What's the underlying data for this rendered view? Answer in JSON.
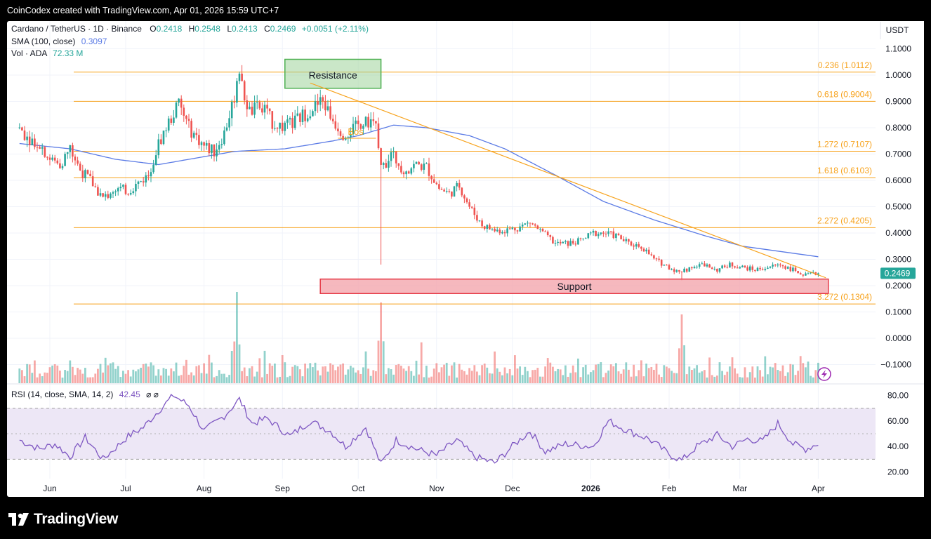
{
  "header": {
    "caption": "CoinCodex created with TradingView.com, Apr 01, 2026 15:59 UTC+7"
  },
  "legend": {
    "symbol": "Cardano / TetherUS · 1D · Binance",
    "o_label": "O",
    "o_value": "0.2418",
    "h_label": "H",
    "h_value": "0.2548",
    "l_label": "L",
    "l_value": "0.2413",
    "c_label": "C",
    "c_value": "0.2469",
    "change": "+0.0051 (+2.11%)",
    "sma_label": "SMA (100, close)",
    "sma_value": "0.3097",
    "vol_label": "Vol · ADA",
    "vol_value": "72.33 M"
  },
  "price_axis": {
    "currency": "USDT",
    "ticks": [
      "1.1000",
      "1.0000",
      "0.9000",
      "0.8000",
      "0.7000",
      "0.6000",
      "0.5000",
      "0.4000",
      "0.3000",
      "0.2000",
      "0.1000",
      "0.0000",
      "−0.1000"
    ],
    "current_price": "0.2469"
  },
  "time_axis": {
    "labels": [
      "Jun",
      "Jul",
      "Aug",
      "Sep",
      "Oct",
      "Nov",
      "Dec",
      "2026",
      "Feb",
      "Mar",
      "Apr"
    ]
  },
  "rsi": {
    "label": "RSI (14, close, SMA, 14, 2)",
    "value": "42.45",
    "extra": "⌀ ⌀",
    "ticks": [
      "80.00",
      "60.00",
      "40.00",
      "20.00"
    ],
    "upper_band": 70,
    "middle": 50,
    "lower_band": 30
  },
  "annotations": {
    "resistance": "Resistance",
    "support": "Support",
    "bos": "Bos"
  },
  "chart_data": {
    "type": "candlestick",
    "title": "Cardano / TetherUS · 1D · Binance",
    "ylim": [
      -0.1,
      1.1
    ],
    "fibonacci_levels": [
      {
        "label": "0.236 (1.0112)",
        "value": 1.0112
      },
      {
        "label": "0.618 (0.9004)",
        "value": 0.9004
      },
      {
        "label": "1.272 (0.7107)",
        "value": 0.7107
      },
      {
        "label": "1.618 (0.6103)",
        "value": 0.6103
      },
      {
        "label": "2.272 (0.4205)",
        "value": 0.4205
      },
      {
        "label": "3.272 (0.1304)",
        "value": 0.1304
      }
    ],
    "price_path": [
      [
        "May 20",
        0.8
      ],
      [
        "May 24",
        0.76
      ],
      [
        "May 28",
        0.74
      ],
      [
        "Jun 01",
        0.68
      ],
      [
        "Jun 05",
        0.66
      ],
      [
        "Jun 09",
        0.72
      ],
      [
        "Jun 13",
        0.64
      ],
      [
        "Jun 17",
        0.6
      ],
      [
        "Jun 22",
        0.53
      ],
      [
        "Jun 27",
        0.57
      ],
      [
        "Jul 02",
        0.56
      ],
      [
        "Jul 06",
        0.59
      ],
      [
        "Jul 10",
        0.62
      ],
      [
        "Jul 14",
        0.74
      ],
      [
        "Jul 18",
        0.82
      ],
      [
        "Jul 22",
        0.89
      ],
      [
        "Jul 26",
        0.8
      ],
      [
        "Aug 01",
        0.73
      ],
      [
        "Aug 05",
        0.71
      ],
      [
        "Aug 09",
        0.78
      ],
      [
        "Aug 13",
        0.92
      ],
      [
        "Aug 15",
        0.98
      ],
      [
        "Aug 19",
        0.86
      ],
      [
        "Aug 24",
        0.88
      ],
      [
        "Aug 28",
        0.82
      ],
      [
        "Sep 02",
        0.8
      ],
      [
        "Sep 07",
        0.83
      ],
      [
        "Sep 12",
        0.87
      ],
      [
        "Sep 17",
        0.9
      ],
      [
        "Sep 21",
        0.83
      ],
      [
        "Sep 25",
        0.78
      ],
      [
        "Sep 30",
        0.8
      ],
      [
        "Oct 04",
        0.84
      ],
      [
        "Oct 08",
        0.8
      ],
      [
        "Oct 10",
        0.64
      ],
      [
        "Oct 14",
        0.7
      ],
      [
        "Oct 19",
        0.64
      ],
      [
        "Oct 24",
        0.66
      ],
      [
        "Oct 28",
        0.65
      ],
      [
        "Nov 02",
        0.57
      ],
      [
        "Nov 06",
        0.55
      ],
      [
        "Nov 10",
        0.58
      ],
      [
        "Nov 14",
        0.5
      ],
      [
        "Nov 19",
        0.43
      ],
      [
        "Nov 24",
        0.41
      ],
      [
        "Nov 28",
        0.41
      ],
      [
        "Dec 03",
        0.42
      ],
      [
        "Dec 08",
        0.44
      ],
      [
        "Dec 13",
        0.4
      ],
      [
        "Dec 18",
        0.36
      ],
      [
        "Dec 23",
        0.36
      ],
      [
        "Dec 28",
        0.37
      ],
      [
        "Jan 02",
        0.4
      ],
      [
        "Jan 06",
        0.4
      ],
      [
        "Jan 11",
        0.39
      ],
      [
        "Jan 16",
        0.36
      ],
      [
        "Jan 21",
        0.35
      ],
      [
        "Jan 26",
        0.3
      ],
      [
        "Feb 01",
        0.27
      ],
      [
        "Feb 05",
        0.25
      ],
      [
        "Feb 10",
        0.27
      ],
      [
        "Feb 15",
        0.28
      ],
      [
        "Feb 20",
        0.26
      ],
      [
        "Feb 25",
        0.28
      ],
      [
        "Mar 02",
        0.27
      ],
      [
        "Mar 07",
        0.26
      ],
      [
        "Mar 12",
        0.27
      ],
      [
        "Mar 17",
        0.28
      ],
      [
        "Mar 22",
        0.26
      ],
      [
        "Mar 27",
        0.24
      ],
      [
        "Apr 01",
        0.2469
      ]
    ],
    "spikes": [
      {
        "date": "Oct 10",
        "low": 0.28
      },
      {
        "date": "Feb 06",
        "low": 0.22
      }
    ],
    "sma_100": [
      [
        "May 20",
        0.74
      ],
      [
        "Jun 09",
        0.72
      ],
      [
        "Jun 27",
        0.68
      ],
      [
        "Jul 14",
        0.66
      ],
      [
        "Jul 26",
        0.68
      ],
      [
        "Aug 13",
        0.71
      ],
      [
        "Sep 02",
        0.72
      ],
      [
        "Sep 21",
        0.75
      ],
      [
        "Oct 01",
        0.77
      ],
      [
        "Oct 15",
        0.81
      ],
      [
        "Oct 28",
        0.8
      ],
      [
        "Nov 14",
        0.77
      ],
      [
        "Nov 28",
        0.72
      ],
      [
        "Dec 18",
        0.62
      ],
      [
        "Jan 06",
        0.52
      ],
      [
        "Jan 26",
        0.45
      ],
      [
        "Feb 15",
        0.39
      ],
      [
        "Mar 02",
        0.35
      ],
      [
        "Mar 17",
        0.33
      ],
      [
        "Apr 01",
        0.31
      ]
    ],
    "trendline": [
      [
        "Sep 12",
        0.97
      ],
      [
        "Apr 04",
        0.23
      ]
    ],
    "resistance_zone": {
      "from": "Sep 02",
      "to": "Oct 10",
      "low": 0.95,
      "high": 1.06
    },
    "support_zone": {
      "from": "Sep 16",
      "to": "Apr 05",
      "low": 0.17,
      "high": 0.225
    },
    "bos_level": {
      "from": "Sep 23",
      "to": "Oct 08",
      "value": 0.76
    },
    "volume_spikes": [
      {
        "date": "Aug 14",
        "height": 0.0
      },
      {
        "date": "Oct 10",
        "height": 0.0
      },
      {
        "date": "Feb 06",
        "height": 0.0
      }
    ],
    "rsi_path": [
      [
        "May 20",
        45
      ],
      [
        "May 28",
        38
      ],
      [
        "Jun 03",
        42
      ],
      [
        "Jun 09",
        32
      ],
      [
        "Jun 15",
        47
      ],
      [
        "Jun 22",
        30
      ],
      [
        "Jul 02",
        48
      ],
      [
        "Jul 08",
        55
      ],
      [
        "Jul 14",
        68
      ],
      [
        "Jul 20",
        80
      ],
      [
        "Jul 26",
        72
      ],
      [
        "Aug 01",
        52
      ],
      [
        "Aug 09",
        64
      ],
      [
        "Aug 15",
        77
      ],
      [
        "Aug 20",
        58
      ],
      [
        "Aug 26",
        62
      ],
      [
        "Sep 04",
        48
      ],
      [
        "Sep 12",
        60
      ],
      [
        "Sep 20",
        52
      ],
      [
        "Sep 26",
        40
      ],
      [
        "Oct 04",
        55
      ],
      [
        "Oct 10",
        26
      ],
      [
        "Oct 16",
        45
      ],
      [
        "Oct 24",
        38
      ],
      [
        "Nov 01",
        33
      ],
      [
        "Nov 09",
        45
      ],
      [
        "Nov 16",
        32
      ],
      [
        "Nov 24",
        27
      ],
      [
        "Dec 02",
        42
      ],
      [
        "Dec 08",
        52
      ],
      [
        "Dec 14",
        36
      ],
      [
        "Dec 22",
        42
      ],
      [
        "Jan 02",
        40
      ],
      [
        "Jan 08",
        60
      ],
      [
        "Jan 16",
        52
      ],
      [
        "Jan 24",
        46
      ],
      [
        "Feb 01",
        34
      ],
      [
        "Feb 06",
        29
      ],
      [
        "Feb 12",
        40
      ],
      [
        "Feb 20",
        49
      ],
      [
        "Feb 26",
        40
      ],
      [
        "Mar 04",
        46
      ],
      [
        "Mar 10",
        44
      ],
      [
        "Mar 16",
        58
      ],
      [
        "Mar 22",
        42
      ],
      [
        "Mar 27",
        38
      ],
      [
        "Apr 01",
        42.45
      ]
    ]
  },
  "colors": {
    "up": "#26a69a",
    "down": "#ef5350",
    "fib": "#f7a21b",
    "sma": "#5b7be5",
    "rsi": "#7e57c2",
    "rsi_band": "#ede7f6",
    "resistance_fill": "#9ed39b",
    "support_fill": "#f4a6ae",
    "grid": "#f0f3fa",
    "text": "#131722"
  }
}
